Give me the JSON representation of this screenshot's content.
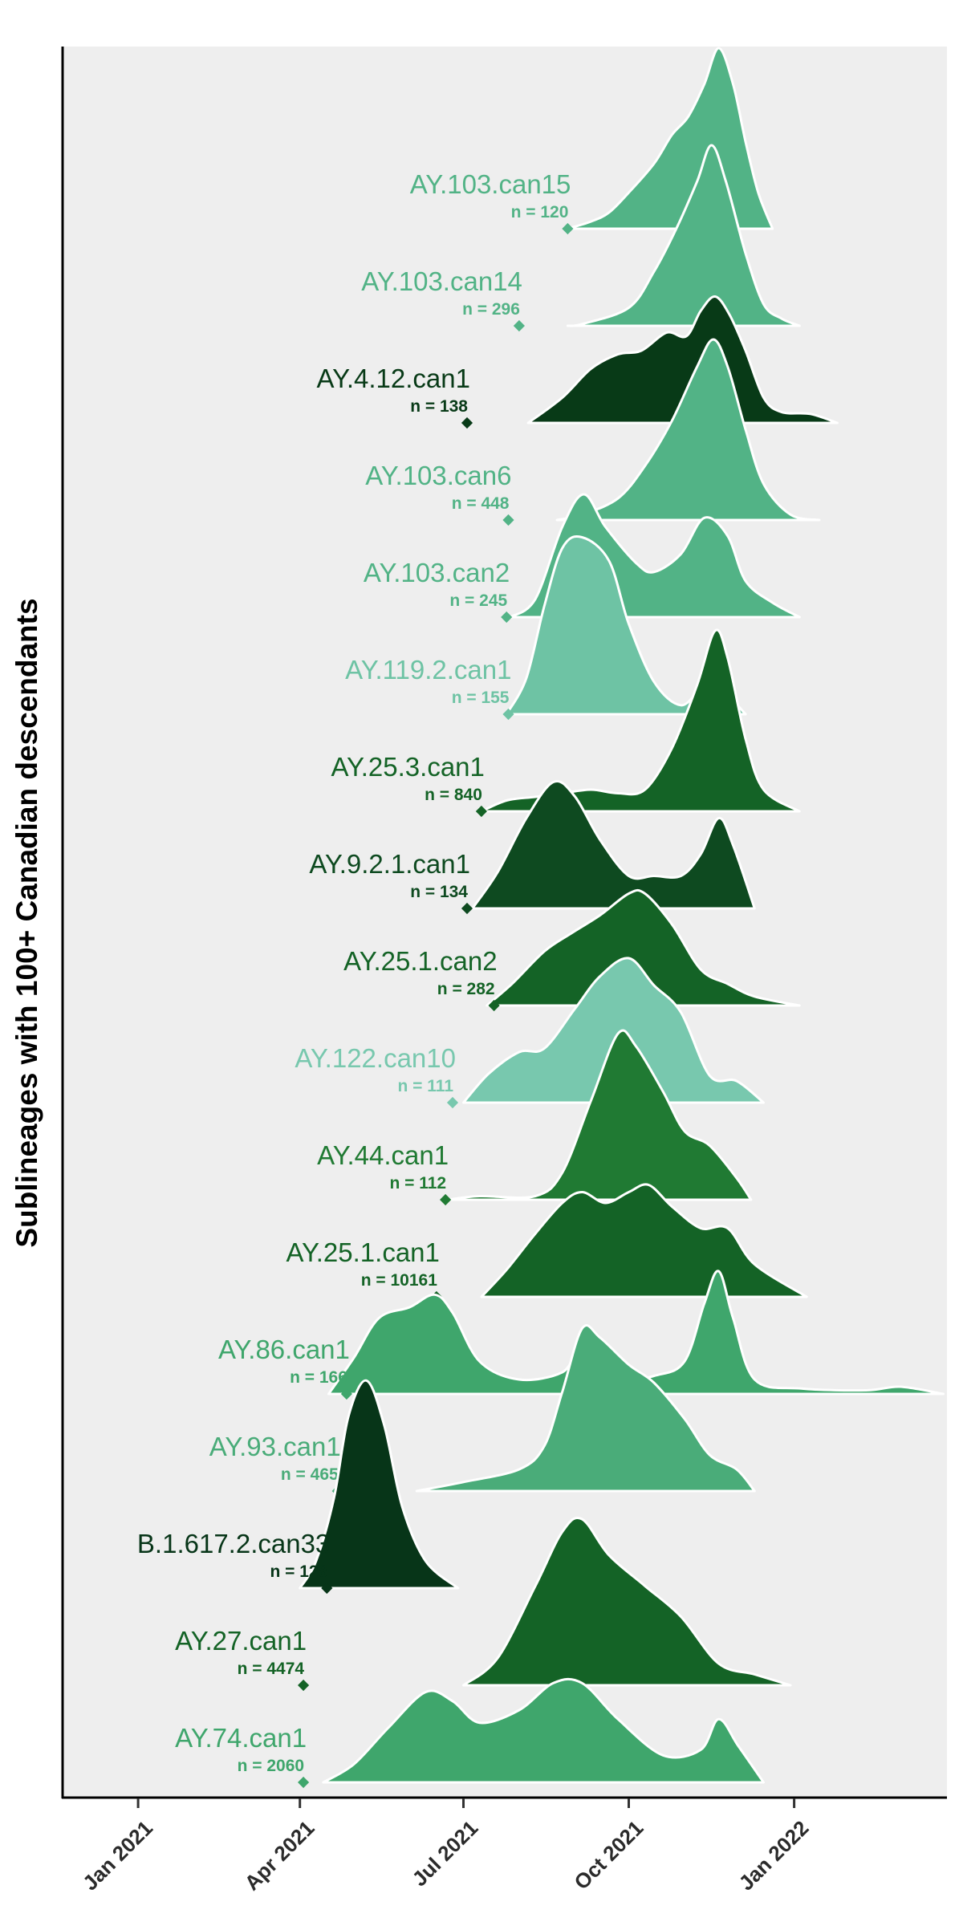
{
  "chart_data": {
    "type": "ridgeline",
    "title": "",
    "xlabel": "",
    "ylabel": "Sublineages with 100+ Canadian descendants",
    "x_axis": {
      "type": "date",
      "range": [
        "2020-11-20",
        "2022-03-27"
      ],
      "ticks": [
        "2021-01-01",
        "2021-04-01",
        "2021-07-01",
        "2021-10-01",
        "2022-01-01"
      ],
      "tick_labels": [
        "Jan 2021",
        "Apr 2021",
        "Jul 2021",
        "Oct 2021",
        "Jan 2022"
      ]
    },
    "panel_background": "#eeeeee",
    "grid": false,
    "legend": "none",
    "series": [
      {
        "name": "AY.103.can15",
        "n_label": "n = ",
        "n": "120",
        "color": "#52b386",
        "emergence_date": "2021-08-28",
        "density": [
          [
            "2021-08-28",
            0
          ],
          [
            "2021-09-10",
            0.04
          ],
          [
            "2021-09-20",
            0.09
          ],
          [
            "2021-10-01",
            0.2
          ],
          [
            "2021-10-15",
            0.36
          ],
          [
            "2021-10-25",
            0.52
          ],
          [
            "2021-11-03",
            0.62
          ],
          [
            "2021-11-12",
            0.8
          ],
          [
            "2021-11-20",
            1
          ],
          [
            "2021-11-28",
            0.8
          ],
          [
            "2021-12-05",
            0.48
          ],
          [
            "2021-12-12",
            0.2
          ],
          [
            "2021-12-20",
            0
          ]
        ]
      },
      {
        "name": "AY.103.can14",
        "n_label": "n = ",
        "n": "296",
        "color": "#52b386",
        "emergence_date": "2021-08-01",
        "density": [
          [
            "2021-08-28",
            0
          ],
          [
            "2021-09-05",
            0.01
          ],
          [
            "2021-10-01",
            0.1
          ],
          [
            "2021-10-15",
            0.3
          ],
          [
            "2021-10-28",
            0.55
          ],
          [
            "2021-11-08",
            0.8
          ],
          [
            "2021-11-16",
            1
          ],
          [
            "2021-11-24",
            0.8
          ],
          [
            "2021-12-05",
            0.4
          ],
          [
            "2021-12-15",
            0.12
          ],
          [
            "2021-12-25",
            0.04
          ],
          [
            "2022-01-04",
            0
          ]
        ]
      },
      {
        "name": "AY.4.12.can1",
        "n_label": "n = ",
        "n": "138",
        "color": "#083a17",
        "emergence_date": "2021-07-03",
        "density": [
          [
            "2021-08-06",
            0
          ],
          [
            "2021-08-25",
            0.14
          ],
          [
            "2021-09-10",
            0.3
          ],
          [
            "2021-09-25",
            0.38
          ],
          [
            "2021-10-08",
            0.4
          ],
          [
            "2021-10-22",
            0.5
          ],
          [
            "2021-11-02",
            0.48
          ],
          [
            "2021-11-10",
            0.62
          ],
          [
            "2021-11-18",
            0.7
          ],
          [
            "2021-11-26",
            0.6
          ],
          [
            "2021-12-05",
            0.4
          ],
          [
            "2021-12-15",
            0.14
          ],
          [
            "2021-12-25",
            0.06
          ],
          [
            "2022-01-10",
            0.05
          ],
          [
            "2022-01-25",
            0
          ]
        ]
      },
      {
        "name": "AY.103.can6",
        "n_label": "n = ",
        "n": "448",
        "color": "#52b386",
        "emergence_date": "2021-07-26",
        "density": [
          [
            "2021-08-22",
            0
          ],
          [
            "2021-09-05",
            0.03
          ],
          [
            "2021-09-25",
            0.12
          ],
          [
            "2021-10-10",
            0.3
          ],
          [
            "2021-10-25",
            0.55
          ],
          [
            "2021-11-08",
            0.85
          ],
          [
            "2021-11-17",
            1
          ],
          [
            "2021-11-25",
            0.85
          ],
          [
            "2021-12-05",
            0.5
          ],
          [
            "2021-12-15",
            0.2
          ],
          [
            "2021-12-30",
            0.03
          ],
          [
            "2022-01-15",
            0
          ]
        ]
      },
      {
        "name": "AY.103.can2",
        "n_label": "n = ",
        "n": "245",
        "color": "#52b386",
        "emergence_date": "2021-07-25",
        "density": [
          [
            "2021-07-27",
            0
          ],
          [
            "2021-08-10",
            0.1
          ],
          [
            "2021-08-25",
            0.5
          ],
          [
            "2021-09-06",
            0.68
          ],
          [
            "2021-09-18",
            0.5
          ],
          [
            "2021-10-05",
            0.3
          ],
          [
            "2021-10-15",
            0.25
          ],
          [
            "2021-10-30",
            0.35
          ],
          [
            "2021-11-12",
            0.55
          ],
          [
            "2021-11-25",
            0.45
          ],
          [
            "2021-12-05",
            0.2
          ],
          [
            "2021-12-20",
            0.08
          ],
          [
            "2022-01-04",
            0
          ]
        ]
      },
      {
        "name": "AY.119.2.can1",
        "n_label": "n = ",
        "n": "155",
        "color": "#6ec3a4",
        "emergence_date": "2021-07-26",
        "density": [
          [
            "2021-07-25",
            0
          ],
          [
            "2021-08-05",
            0.2
          ],
          [
            "2021-08-15",
            0.6
          ],
          [
            "2021-08-25",
            0.92
          ],
          [
            "2021-09-05",
            0.98
          ],
          [
            "2021-09-20",
            0.85
          ],
          [
            "2021-10-01",
            0.5
          ],
          [
            "2021-10-15",
            0.18
          ],
          [
            "2021-10-30",
            0.05
          ],
          [
            "2021-11-12",
            0.15
          ],
          [
            "2021-11-25",
            0.1
          ],
          [
            "2021-12-05",
            0
          ]
        ]
      },
      {
        "name": "AY.25.3.can1",
        "n_label": "n = ",
        "n": "840",
        "color": "#146326",
        "emergence_date": "2021-07-11",
        "density": [
          [
            "2021-07-11",
            0
          ],
          [
            "2021-07-25",
            0.06
          ],
          [
            "2021-08-10",
            0.08
          ],
          [
            "2021-08-25",
            0.1
          ],
          [
            "2021-09-10",
            0.12
          ],
          [
            "2021-09-25",
            0.1
          ],
          [
            "2021-10-10",
            0.12
          ],
          [
            "2021-10-25",
            0.35
          ],
          [
            "2021-11-08",
            0.7
          ],
          [
            "2021-11-18",
            1
          ],
          [
            "2021-11-25",
            0.85
          ],
          [
            "2021-12-05",
            0.4
          ],
          [
            "2021-12-15",
            0.12
          ],
          [
            "2022-01-04",
            0
          ]
        ]
      },
      {
        "name": "AY.9.2.1.can1",
        "n_label": "n = ",
        "n": "134",
        "color": "#0e4a20",
        "emergence_date": "2021-07-03",
        "density": [
          [
            "2021-07-06",
            0
          ],
          [
            "2021-07-20",
            0.2
          ],
          [
            "2021-08-05",
            0.5
          ],
          [
            "2021-08-20",
            0.7
          ],
          [
            "2021-09-01",
            0.62
          ],
          [
            "2021-09-15",
            0.38
          ],
          [
            "2021-10-01",
            0.18
          ],
          [
            "2021-10-15",
            0.18
          ],
          [
            "2021-10-30",
            0.18
          ],
          [
            "2021-11-10",
            0.3
          ],
          [
            "2021-11-20",
            0.5
          ],
          [
            "2021-11-28",
            0.35
          ],
          [
            "2021-12-10",
            0
          ]
        ]
      },
      {
        "name": "AY.25.1.can2",
        "n_label": "n = ",
        "n": "282",
        "color": "#146326",
        "emergence_date": "2021-07-18",
        "density": [
          [
            "2021-07-14",
            0
          ],
          [
            "2021-07-28",
            0.12
          ],
          [
            "2021-08-15",
            0.3
          ],
          [
            "2021-08-30",
            0.4
          ],
          [
            "2021-09-15",
            0.5
          ],
          [
            "2021-10-01",
            0.62
          ],
          [
            "2021-10-10",
            0.62
          ],
          [
            "2021-10-25",
            0.45
          ],
          [
            "2021-11-10",
            0.2
          ],
          [
            "2021-11-25",
            0.12
          ],
          [
            "2021-12-10",
            0.05
          ],
          [
            "2022-01-04",
            0
          ]
        ]
      },
      {
        "name": "AY.122.can10",
        "n_label": "n = ",
        "n": "111",
        "color": "#78c8ae",
        "emergence_date": "2021-06-25",
        "density": [
          [
            "2021-07-01",
            0
          ],
          [
            "2021-07-15",
            0.16
          ],
          [
            "2021-08-01",
            0.28
          ],
          [
            "2021-08-15",
            0.3
          ],
          [
            "2021-09-01",
            0.52
          ],
          [
            "2021-09-15",
            0.7
          ],
          [
            "2021-10-01",
            0.8
          ],
          [
            "2021-10-15",
            0.65
          ],
          [
            "2021-10-30",
            0.5
          ],
          [
            "2021-11-15",
            0.15
          ],
          [
            "2021-11-30",
            0.12
          ],
          [
            "2021-12-15",
            0
          ]
        ]
      },
      {
        "name": "AY.44.can1",
        "n_label": "n = ",
        "n": "112",
        "color": "#207a33",
        "emergence_date": "2021-06-21",
        "density": [
          [
            "2021-06-22",
            0
          ],
          [
            "2021-07-10",
            0.02
          ],
          [
            "2021-08-10",
            0.02
          ],
          [
            "2021-08-25",
            0.15
          ],
          [
            "2021-09-10",
            0.55
          ],
          [
            "2021-09-25",
            0.92
          ],
          [
            "2021-10-05",
            0.85
          ],
          [
            "2021-10-20",
            0.6
          ],
          [
            "2021-11-01",
            0.38
          ],
          [
            "2021-11-15",
            0.3
          ],
          [
            "2021-11-30",
            0.12
          ],
          [
            "2021-12-08",
            0
          ]
        ]
      },
      {
        "name": "AY.25.1.can1",
        "n_label": "n = ",
        "n": "10161",
        "color": "#146326",
        "emergence_date": "2021-06-16",
        "density": [
          [
            "2021-07-11",
            0
          ],
          [
            "2021-07-25",
            0.15
          ],
          [
            "2021-08-10",
            0.35
          ],
          [
            "2021-08-25",
            0.52
          ],
          [
            "2021-09-05",
            0.58
          ],
          [
            "2021-09-18",
            0.52
          ],
          [
            "2021-10-01",
            0.58
          ],
          [
            "2021-10-12",
            0.62
          ],
          [
            "2021-10-25",
            0.5
          ],
          [
            "2021-11-10",
            0.38
          ],
          [
            "2021-11-25",
            0.38
          ],
          [
            "2021-12-10",
            0.18
          ],
          [
            "2022-01-08",
            0
          ]
        ]
      },
      {
        "name": "AY.86.can1",
        "n_label": "n = ",
        "n": "166",
        "color": "#3fa66c",
        "emergence_date": "2021-04-27",
        "density": [
          [
            "2021-04-17",
            0
          ],
          [
            "2021-05-01",
            0.2
          ],
          [
            "2021-05-15",
            0.42
          ],
          [
            "2021-06-01",
            0.48
          ],
          [
            "2021-06-15",
            0.55
          ],
          [
            "2021-06-25",
            0.45
          ],
          [
            "2021-07-10",
            0.18
          ],
          [
            "2021-08-01",
            0.08
          ],
          [
            "2021-08-25",
            0.12
          ],
          [
            "2021-09-05",
            0.25
          ],
          [
            "2021-09-20",
            0.06
          ],
          [
            "2021-10-15",
            0.1
          ],
          [
            "2021-11-01",
            0.18
          ],
          [
            "2021-11-12",
            0.5
          ],
          [
            "2021-11-20",
            0.68
          ],
          [
            "2021-11-28",
            0.42
          ],
          [
            "2021-12-10",
            0.08
          ],
          [
            "2022-01-05",
            0.03
          ],
          [
            "2022-02-10",
            0.02
          ],
          [
            "2022-03-01",
            0.04
          ],
          [
            "2022-03-25",
            0
          ]
        ]
      },
      {
        "name": "AY.93.can1",
        "n_label": "n = ",
        "n": "465",
        "color": "#4aac79",
        "emergence_date": "2021-04-22",
        "density": [
          [
            "2021-06-05",
            0
          ],
          [
            "2021-07-01",
            0.05
          ],
          [
            "2021-08-01",
            0.12
          ],
          [
            "2021-08-15",
            0.25
          ],
          [
            "2021-08-25",
            0.55
          ],
          [
            "2021-09-05",
            0.9
          ],
          [
            "2021-09-15",
            0.85
          ],
          [
            "2021-10-01",
            0.7
          ],
          [
            "2021-10-15",
            0.6
          ],
          [
            "2021-11-01",
            0.4
          ],
          [
            "2021-11-15",
            0.2
          ],
          [
            "2021-11-30",
            0.12
          ],
          [
            "2021-12-10",
            0
          ]
        ]
      },
      {
        "name": "B.1.617.2.can33",
        "n_label": "n = ",
        "n": "128",
        "color": "#073518",
        "emergence_date": "2021-04-16",
        "density": [
          [
            "2021-04-01",
            0
          ],
          [
            "2021-04-10",
            0.15
          ],
          [
            "2021-04-20",
            0.5
          ],
          [
            "2021-04-28",
            0.95
          ],
          [
            "2021-05-08",
            1.15
          ],
          [
            "2021-05-18",
            0.9
          ],
          [
            "2021-05-28",
            0.45
          ],
          [
            "2021-06-10",
            0.15
          ],
          [
            "2021-06-28",
            0
          ]
        ]
      },
      {
        "name": "AY.27.can1",
        "n_label": "n = ",
        "n": "4474",
        "color": "#146326",
        "emergence_date": "2021-04-03",
        "density": [
          [
            "2021-07-01",
            0
          ],
          [
            "2021-07-20",
            0.15
          ],
          [
            "2021-08-10",
            0.55
          ],
          [
            "2021-08-25",
            0.85
          ],
          [
            "2021-09-05",
            0.92
          ],
          [
            "2021-09-20",
            0.72
          ],
          [
            "2021-10-10",
            0.55
          ],
          [
            "2021-10-30",
            0.38
          ],
          [
            "2021-11-20",
            0.12
          ],
          [
            "2021-12-10",
            0.06
          ],
          [
            "2021-12-30",
            0
          ]
        ]
      },
      {
        "name": "AY.74.can1",
        "n_label": "n = ",
        "n": "2060",
        "color": "#3fa66c",
        "emergence_date": "2021-04-03",
        "density": [
          [
            "2021-04-14",
            0
          ],
          [
            "2021-05-01",
            0.1
          ],
          [
            "2021-05-20",
            0.3
          ],
          [
            "2021-06-10",
            0.5
          ],
          [
            "2021-06-25",
            0.45
          ],
          [
            "2021-07-10",
            0.33
          ],
          [
            "2021-08-01",
            0.4
          ],
          [
            "2021-08-20",
            0.55
          ],
          [
            "2021-09-05",
            0.55
          ],
          [
            "2021-09-25",
            0.35
          ],
          [
            "2021-10-20",
            0.15
          ],
          [
            "2021-11-10",
            0.18
          ],
          [
            "2021-11-20",
            0.35
          ],
          [
            "2021-12-01",
            0.2
          ],
          [
            "2021-12-15",
            0
          ]
        ]
      }
    ]
  }
}
